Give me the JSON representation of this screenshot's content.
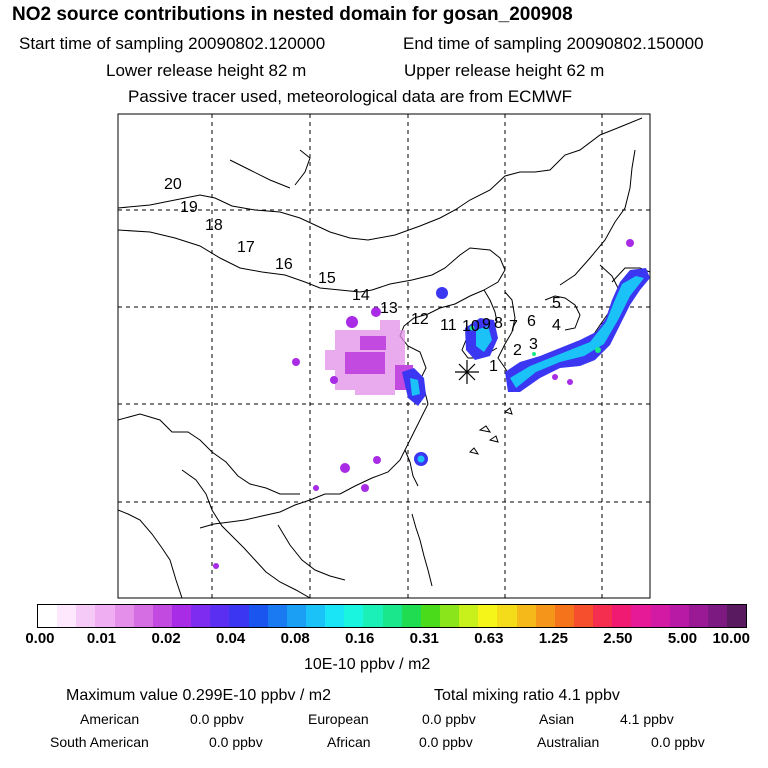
{
  "header": {
    "title": "NO2 source contributions in nested domain for gosan_200908",
    "start": "Start time of sampling 20090802.120000",
    "end": "End time of sampling 20090802.150000",
    "lower": "Lower release height   82 m",
    "upper": "Upper release height   62 m",
    "tracer": "Passive tracer used, meteorological data are from ECMWF"
  },
  "map": {
    "trajectory_labels": [
      "1",
      "2",
      "3",
      "4",
      "5",
      "6",
      "7",
      "8",
      "9",
      "10",
      "11",
      "12",
      "13",
      "14",
      "15",
      "16",
      "17",
      "18",
      "19",
      "20"
    ],
    "receptor_marker": "receptor-star-icon"
  },
  "colorbar": {
    "colors": [
      "#ffffff",
      "#fde8fd",
      "#f6caf7",
      "#efaef2",
      "#e48fe9",
      "#d56ee2",
      "#c34ae0",
      "#a82be6",
      "#7d2cf0",
      "#5a2ff2",
      "#3a36f2",
      "#1a55f0",
      "#1a7af2",
      "#1a9ff5",
      "#1ac2f7",
      "#1ae5f7",
      "#1af5df",
      "#1af0b8",
      "#1ae68c",
      "#1fdc50",
      "#4adc1a",
      "#8ae61a",
      "#c8f01a",
      "#f5f51a",
      "#f5dc1a",
      "#f5b91a",
      "#f5961a",
      "#f5731a",
      "#f54f2d",
      "#f52d4f",
      "#f01a73",
      "#e61a96",
      "#d21aa5",
      "#b91aa5",
      "#9a1a96",
      "#7d1a82",
      "#5a1a5f"
    ],
    "ticks": [
      "0.00",
      "0.01",
      "0.02",
      "0.04",
      "0.08",
      "0.16",
      "0.31",
      "0.63",
      "1.25",
      "2.50",
      "5.00",
      "10.00"
    ],
    "unit": "10E-10 ppbv / m2"
  },
  "summary": {
    "max_label": "Maximum value  0.299E-10 ppbv / m2",
    "total_label": "Total mixing ratio        4.1 ppbv",
    "regions": [
      {
        "name": "American",
        "value": "0.0 ppbv"
      },
      {
        "name": "European",
        "value": "0.0 ppbv"
      },
      {
        "name": "Asian",
        "value": "4.1 ppbv"
      },
      {
        "name": "South American",
        "value": "0.0 ppbv"
      },
      {
        "name": "African",
        "value": "0.0 ppbv"
      },
      {
        "name": "Australian",
        "value": "0.0 ppbv"
      }
    ]
  }
}
